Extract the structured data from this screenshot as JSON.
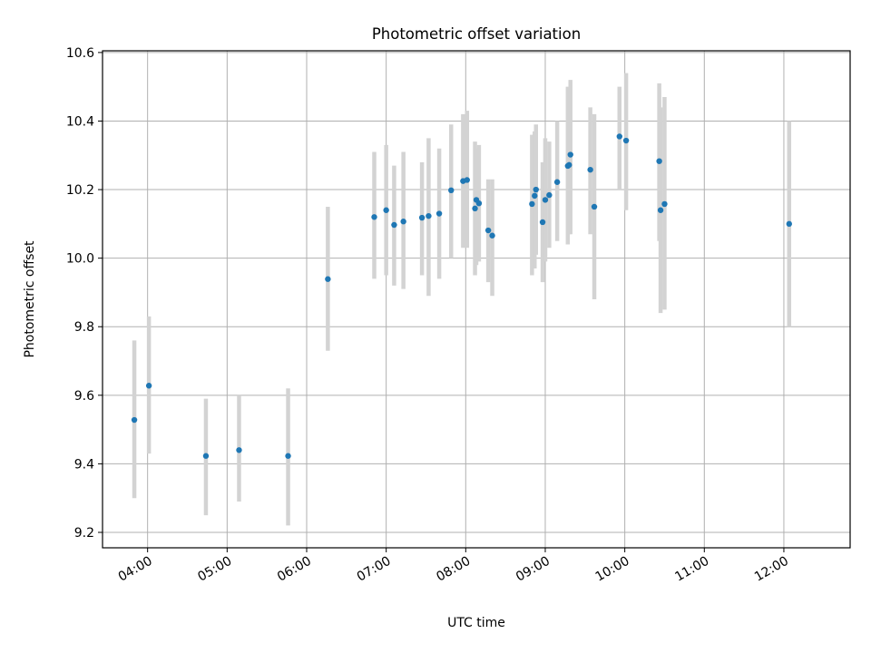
{
  "chart_data": {
    "type": "scatter",
    "title": "Photometric offset variation",
    "xlabel": "UTC time",
    "ylabel": "Photometric offset",
    "xlim": [
      "03:26",
      "12:50"
    ],
    "ylim": [
      9.155,
      10.605
    ],
    "grid": true,
    "xticks": [
      "04:00",
      "05:00",
      "06:00",
      "07:00",
      "08:00",
      "09:00",
      "10:00",
      "11:00",
      "12:00"
    ],
    "yticks": [
      "9.2",
      "9.4",
      "9.6",
      "9.8",
      "10.0",
      "10.2",
      "10.4",
      "10.6"
    ],
    "point_color": "#1f77b4",
    "errorbar_color": "#d3d3d3",
    "points": [
      {
        "x": "03:50",
        "y": 9.528,
        "lo": 9.3,
        "hi": 9.76
      },
      {
        "x": "04:01",
        "y": 9.628,
        "lo": 9.43,
        "hi": 9.83
      },
      {
        "x": "04:44",
        "y": 9.423,
        "lo": 9.25,
        "hi": 9.59
      },
      {
        "x": "05:09",
        "y": 9.44,
        "lo": 9.29,
        "hi": 9.6
      },
      {
        "x": "05:46",
        "y": 9.423,
        "lo": 9.22,
        "hi": 9.62
      },
      {
        "x": "06:16",
        "y": 9.939,
        "lo": 9.73,
        "hi": 10.15
      },
      {
        "x": "06:51",
        "y": 10.12,
        "lo": 9.94,
        "hi": 10.31
      },
      {
        "x": "07:00",
        "y": 10.14,
        "lo": 9.95,
        "hi": 10.33
      },
      {
        "x": "07:06",
        "y": 10.097,
        "lo": 9.92,
        "hi": 10.27
      },
      {
        "x": "07:13",
        "y": 10.107,
        "lo": 9.91,
        "hi": 10.31
      },
      {
        "x": "07:27",
        "y": 10.118,
        "lo": 9.95,
        "hi": 10.28
      },
      {
        "x": "07:32",
        "y": 10.123,
        "lo": 9.89,
        "hi": 10.35
      },
      {
        "x": "07:40",
        "y": 10.13,
        "lo": 9.94,
        "hi": 10.32
      },
      {
        "x": "07:49",
        "y": 10.198,
        "lo": 10.0,
        "hi": 10.39
      },
      {
        "x": "07:58",
        "y": 10.225,
        "lo": 10.03,
        "hi": 10.42
      },
      {
        "x": "08:01",
        "y": 10.228,
        "lo": 10.03,
        "hi": 10.43
      },
      {
        "x": "08:07",
        "y": 10.145,
        "lo": 9.95,
        "hi": 10.34
      },
      {
        "x": "08:08",
        "y": 10.17,
        "lo": 9.98,
        "hi": 10.32
      },
      {
        "x": "08:10",
        "y": 10.16,
        "lo": 9.99,
        "hi": 10.33
      },
      {
        "x": "08:17",
        "y": 10.081,
        "lo": 9.93,
        "hi": 10.23
      },
      {
        "x": "08:20",
        "y": 10.066,
        "lo": 9.89,
        "hi": 10.23
      },
      {
        "x": "08:50",
        "y": 10.158,
        "lo": 9.95,
        "hi": 10.36
      },
      {
        "x": "08:52",
        "y": 10.182,
        "lo": 9.97,
        "hi": 10.37
      },
      {
        "x": "08:53",
        "y": 10.2,
        "lo": 10.01,
        "hi": 10.39
      },
      {
        "x": "08:58",
        "y": 10.105,
        "lo": 9.93,
        "hi": 10.28
      },
      {
        "x": "09:00",
        "y": 10.17,
        "lo": 9.99,
        "hi": 10.35
      },
      {
        "x": "09:03",
        "y": 10.184,
        "lo": 10.03,
        "hi": 10.34
      },
      {
        "x": "09:09",
        "y": 10.222,
        "lo": 10.05,
        "hi": 10.4
      },
      {
        "x": "09:17",
        "y": 10.269,
        "lo": 10.04,
        "hi": 10.5
      },
      {
        "x": "09:18",
        "y": 10.272,
        "lo": 10.07,
        "hi": 10.48
      },
      {
        "x": "09:19",
        "y": 10.302,
        "lo": 10.07,
        "hi": 10.52
      },
      {
        "x": "09:34",
        "y": 10.258,
        "lo": 10.07,
        "hi": 10.44
      },
      {
        "x": "09:37",
        "y": 10.15,
        "lo": 9.88,
        "hi": 10.42
      },
      {
        "x": "09:56",
        "y": 10.355,
        "lo": 10.2,
        "hi": 10.5
      },
      {
        "x": "10:01",
        "y": 10.343,
        "lo": 10.14,
        "hi": 10.54
      },
      {
        "x": "10:26",
        "y": 10.283,
        "lo": 10.05,
        "hi": 10.51
      },
      {
        "x": "10:27",
        "y": 10.14,
        "lo": 9.84,
        "hi": 10.44
      },
      {
        "x": "10:30",
        "y": 10.158,
        "lo": 9.85,
        "hi": 10.47
      },
      {
        "x": "12:04",
        "y": 10.1,
        "lo": 9.8,
        "hi": 10.4
      }
    ]
  }
}
